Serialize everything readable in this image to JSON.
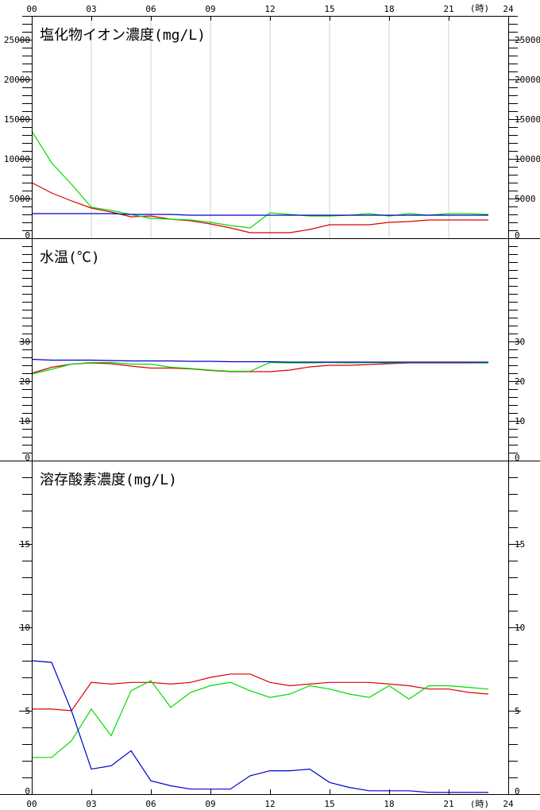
{
  "colors": {
    "red": "#dd0000",
    "green": "#00dd00",
    "blue": "#0000cc",
    "grid": "#d0d0d0",
    "frame": "#000000"
  },
  "time_axis": {
    "labels": [
      "00",
      "03",
      "06",
      "09",
      "12",
      "15",
      "18",
      "21",
      "24"
    ],
    "unit_label": "(時)",
    "range": [
      0,
      24
    ]
  },
  "chart_data": [
    {
      "type": "line",
      "title": "塩化物イオン濃度(mg/L)",
      "ylim": [
        0,
        28000
      ],
      "yticks": [
        0,
        5000,
        10000,
        15000,
        20000,
        25000
      ],
      "minor_step": 1000,
      "grid": "vertical",
      "x": [
        0,
        1,
        2,
        3,
        4,
        5,
        6,
        7,
        8,
        9,
        10,
        11,
        12,
        13,
        14,
        15,
        16,
        17,
        18,
        19,
        20,
        21,
        22,
        23
      ],
      "series": [
        {
          "color": "red",
          "values": [
            7000,
            5700,
            4700,
            3800,
            3300,
            2700,
            2800,
            2400,
            2200,
            1800,
            1300,
            700,
            700,
            700,
            1100,
            1700,
            1700,
            1700,
            2000,
            2100,
            2300,
            2300,
            2300,
            2300
          ]
        },
        {
          "color": "green",
          "values": [
            13500,
            9500,
            6800,
            3900,
            3500,
            3000,
            2500,
            2400,
            2300,
            2000,
            1600,
            1300,
            3200,
            3000,
            2800,
            2800,
            2900,
            3100,
            2800,
            3100,
            2900,
            3100,
            3100,
            3000
          ]
        },
        {
          "color": "blue",
          "values": [
            3100,
            3100,
            3100,
            3100,
            3100,
            3000,
            3000,
            3000,
            2900,
            2900,
            2900,
            2900,
            2900,
            2900,
            2900,
            2900,
            2900,
            2900,
            2900,
            2900,
            2900,
            2900,
            2900,
            2900
          ]
        }
      ]
    },
    {
      "type": "line",
      "title": "水温(℃)",
      "ylim": [
        0,
        56
      ],
      "yticks": [
        0,
        10,
        20,
        30
      ],
      "minor_step": 2,
      "grid": "none",
      "x": [
        0,
        1,
        2,
        3,
        4,
        5,
        6,
        7,
        8,
        9,
        10,
        11,
        12,
        13,
        14,
        15,
        16,
        17,
        18,
        19,
        20,
        21,
        22,
        23
      ],
      "series": [
        {
          "color": "red",
          "values": [
            22.0,
            23.5,
            24.3,
            24.6,
            24.4,
            23.8,
            23.3,
            23.3,
            23.1,
            22.7,
            22.4,
            22.4,
            22.4,
            22.8,
            23.6,
            24.0,
            24.0,
            24.2,
            24.4,
            24.6,
            24.6,
            24.6,
            24.6,
            24.6
          ]
        },
        {
          "color": "green",
          "values": [
            21.8,
            23.0,
            24.3,
            24.7,
            24.7,
            24.3,
            24.3,
            23.5,
            23.2,
            22.8,
            22.5,
            22.5,
            24.7,
            24.6,
            24.6,
            24.7,
            24.6,
            24.7,
            24.6,
            24.7,
            24.7,
            24.7,
            24.7,
            24.6
          ]
        },
        {
          "color": "blue",
          "values": [
            25.5,
            25.3,
            25.3,
            25.3,
            25.2,
            25.1,
            25.1,
            25.1,
            25.0,
            25.0,
            24.9,
            24.9,
            24.9,
            24.8,
            24.8,
            24.8,
            24.8,
            24.8,
            24.8,
            24.8,
            24.8,
            24.8,
            24.8,
            24.8
          ]
        }
      ]
    },
    {
      "type": "line",
      "title": "溶存酸素濃度(mg/L)",
      "ylim": [
        0,
        20
      ],
      "yticks": [
        0,
        5,
        10,
        15
      ],
      "minor_step": 1,
      "grid": "none",
      "x": [
        0,
        1,
        2,
        3,
        4,
        5,
        6,
        7,
        8,
        9,
        10,
        11,
        12,
        13,
        14,
        15,
        16,
        17,
        18,
        19,
        20,
        21,
        22,
        23
      ],
      "series": [
        {
          "color": "red",
          "values": [
            5.1,
            5.1,
            5.0,
            6.7,
            6.6,
            6.7,
            6.7,
            6.6,
            6.7,
            7.0,
            7.2,
            7.2,
            6.7,
            6.5,
            6.6,
            6.7,
            6.7,
            6.7,
            6.6,
            6.5,
            6.3,
            6.3,
            6.1,
            6.0
          ]
        },
        {
          "color": "green",
          "values": [
            2.2,
            2.2,
            3.2,
            5.1,
            3.5,
            6.2,
            6.8,
            5.2,
            6.1,
            6.5,
            6.7,
            6.2,
            5.8,
            6.0,
            6.5,
            6.3,
            6.0,
            5.8,
            6.5,
            5.7,
            6.5,
            6.5,
            6.4,
            6.3
          ]
        },
        {
          "color": "blue",
          "values": [
            8.0,
            7.9,
            5.0,
            1.5,
            1.7,
            2.6,
            0.8,
            0.5,
            0.3,
            0.3,
            0.3,
            1.1,
            1.4,
            1.4,
            1.5,
            0.7,
            0.4,
            0.2,
            0.2,
            0.2,
            0.1,
            0.1,
            0.1,
            0.1
          ]
        }
      ]
    }
  ]
}
